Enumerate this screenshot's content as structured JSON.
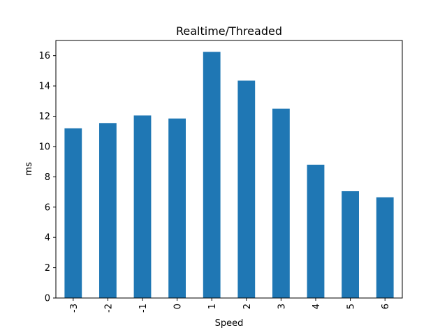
{
  "chart_data": {
    "type": "bar",
    "title": "Realtime/Threaded",
    "xlabel": "Speed",
    "ylabel": "ms",
    "categories": [
      "-3",
      "-2",
      "-1",
      "0",
      "1",
      "2",
      "3",
      "4",
      "5",
      "6"
    ],
    "values": [
      11.2,
      11.55,
      12.05,
      11.85,
      16.25,
      14.35,
      12.5,
      8.8,
      7.05,
      6.65
    ],
    "ylim": [
      0,
      17
    ],
    "yticks": [
      "0",
      "2",
      "4",
      "6",
      "8",
      "10",
      "12",
      "14",
      "16"
    ],
    "bar_color": "#1f77b4",
    "grid": false,
    "legend": false
  }
}
